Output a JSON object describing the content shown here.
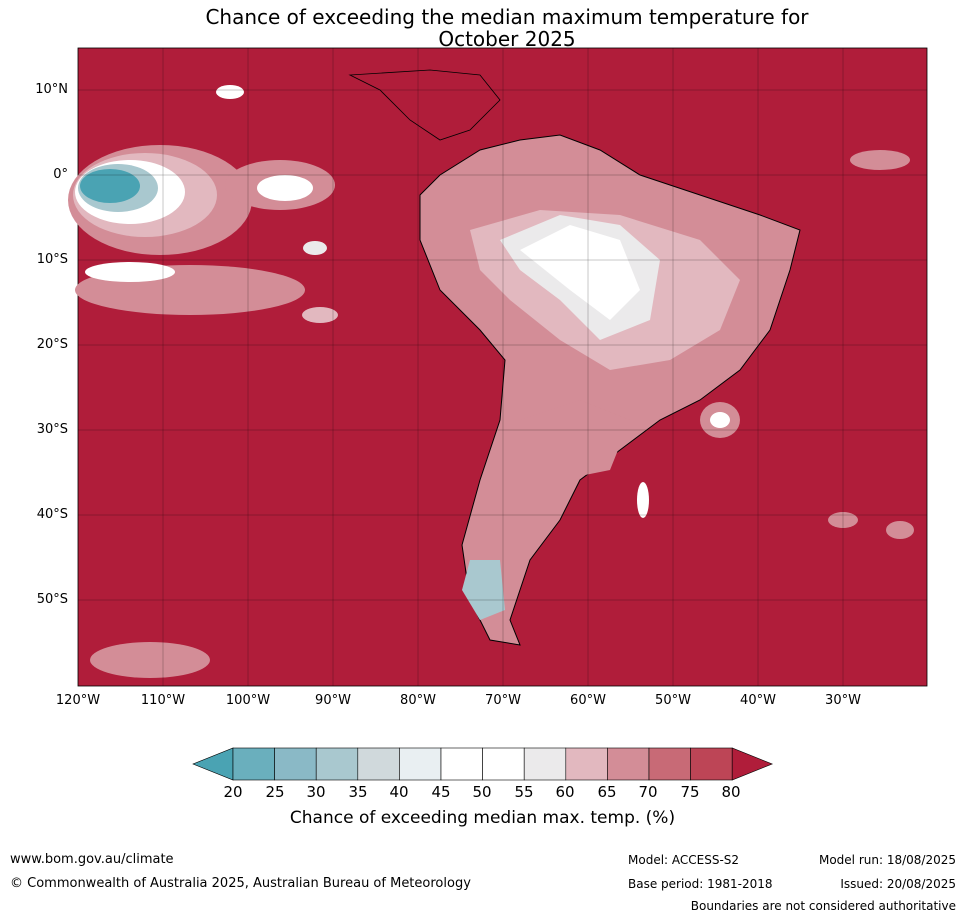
{
  "title": {
    "line1": "Chance of exceeding the median maximum temperature for",
    "line2": "October 2025"
  },
  "map": {
    "background_color": "#b01d3a",
    "lat_ticks": [
      "10°N",
      "0°",
      "10°S",
      "20°S",
      "30°S",
      "40°S",
      "50°S"
    ],
    "lon_ticks": [
      "120°W",
      "110°W",
      "100°W",
      "90°W",
      "80°W",
      "70°W",
      "60°W",
      "50°W",
      "40°W",
      "30°W"
    ]
  },
  "colorbar": {
    "ticks": [
      "20",
      "25",
      "30",
      "35",
      "40",
      "45",
      "50",
      "55",
      "60",
      "65",
      "70",
      "75",
      "80"
    ],
    "colors": [
      "#4aa3b3",
      "#6aafbd",
      "#8ab9c6",
      "#a9c8cf",
      "#d0d9dc",
      "#e9eff2",
      "#ffffff",
      "#ffffff",
      "#ebeaeb",
      "#e2b8bf",
      "#d38d97",
      "#c86a76",
      "#bd4556",
      "#b01d3a"
    ],
    "label": "Chance of exceeding median max. temp. (%)"
  },
  "footer": {
    "website": "www.bom.gov.au/climate",
    "copyright": "© Commonwealth of Australia 2025, Australian Bureau of Meteorology",
    "model": "Model: ACCESS-S2",
    "base_period": "Base period: 1981-2018",
    "model_run": "Model run: 18/08/2025",
    "issued": "Issued: 20/08/2025",
    "disclaimer": "Boundaries are not considered authoritative"
  }
}
